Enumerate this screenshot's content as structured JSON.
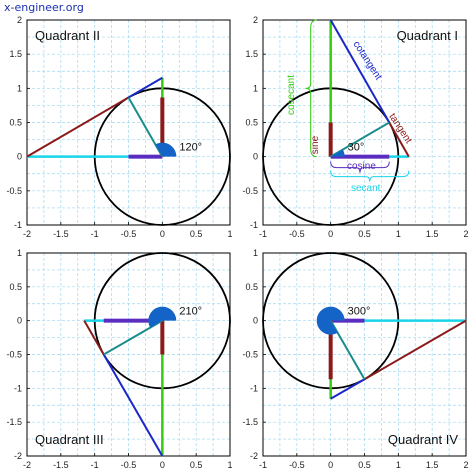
{
  "watermark": "x-engineer.org",
  "colors": {
    "hypotenuse": "#1a8c8c",
    "sine": "#8b1a1a",
    "cosine": "#5a2dc0",
    "tangent": "#8b1a1a",
    "cotangent": "#1a28c8",
    "secant": "#18d4e8",
    "cosecant": "#33cc11",
    "angle": "#1464c8",
    "circle": "#000000",
    "grid": "#9fd8f0"
  },
  "quadrants": [
    {
      "label": "Quadrant II",
      "angle_label": "120°",
      "angle_deg": 120,
      "xlim": [
        -2,
        1
      ],
      "ylim": [
        -1,
        2
      ],
      "xticks": [
        "-2",
        "-1.5",
        "-1",
        "-0.5",
        "0",
        "0.5",
        "1"
      ],
      "yticks": [
        "2",
        "1.5",
        "1",
        "0.5",
        "0",
        "-0.5",
        "-1"
      ],
      "labels": []
    },
    {
      "label": "Quadrant I",
      "angle_label": "30°",
      "angle_deg": 30,
      "xlim": [
        -1,
        2
      ],
      "ylim": [
        -1,
        2
      ],
      "xticks": [
        "-1",
        "-0.5",
        "0",
        "0.5",
        "1",
        "1.5",
        "2"
      ],
      "yticks": [
        "2",
        "1.5",
        "1",
        "0.5",
        "0",
        "-0.5",
        "-1"
      ],
      "labels": [
        {
          "text": "cosecant",
          "color_key": "cosecant"
        },
        {
          "text": "cotangent",
          "color_key": "cotangent"
        },
        {
          "text": "sine",
          "color_key": "sine"
        },
        {
          "text": "tangent",
          "color_key": "tangent"
        },
        {
          "text": "cosine",
          "color_key": "cosine"
        },
        {
          "text": "secant",
          "color_key": "secant"
        }
      ]
    },
    {
      "label": "Quadrant III",
      "angle_label": "210°",
      "angle_deg": 210,
      "xlim": [
        -2,
        1
      ],
      "ylim": [
        -2,
        1
      ],
      "xticks": [
        "-2",
        "-1.5",
        "-1",
        "-0.5",
        "0",
        "0.5",
        "1"
      ],
      "yticks": [
        "1",
        "0.5",
        "0",
        "-0.5",
        "-1",
        "-1.5",
        "-2"
      ],
      "labels": []
    },
    {
      "label": "Quadrant IV",
      "angle_label": "300°",
      "angle_deg": 300,
      "xlim": [
        -1,
        2
      ],
      "ylim": [
        -2,
        1
      ],
      "xticks": [
        "-1",
        "-0.5",
        "0",
        "0.5",
        "1",
        "1.5",
        "2"
      ],
      "yticks": [
        "1",
        "0.5",
        "0",
        "-0.5",
        "-1",
        "-1.5",
        "-2"
      ],
      "labels": []
    }
  ]
}
